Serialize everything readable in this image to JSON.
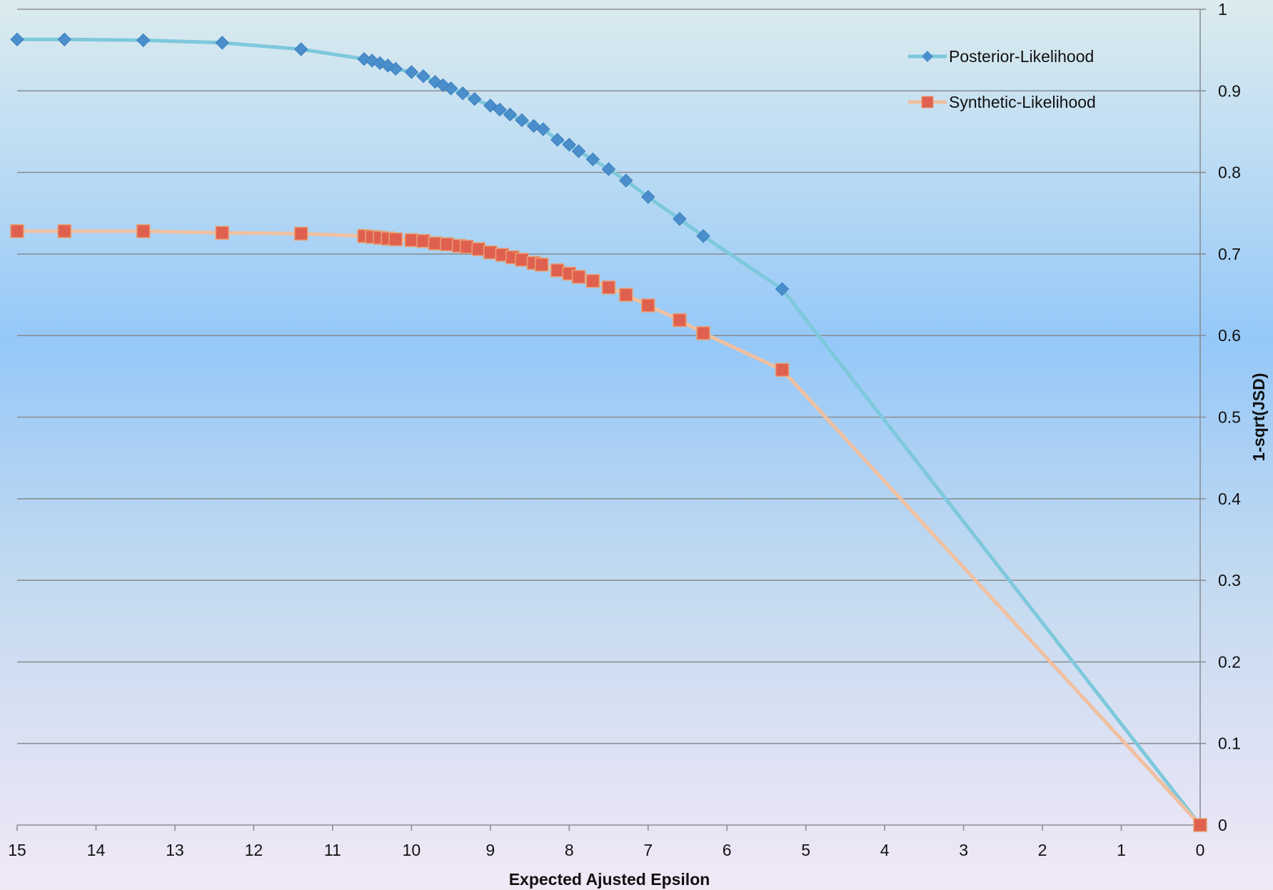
{
  "chart_data": {
    "type": "line",
    "xlabel": "Expected Ajusted Epsilon",
    "ylabel": "1-sqrt(JSD)",
    "xlim": [
      15,
      0
    ],
    "ylim": [
      0,
      1
    ],
    "x_axis_direction": "reversed",
    "y_axis_side": "right",
    "x_ticks": [
      15,
      14,
      13,
      12,
      11,
      10,
      9,
      8,
      7,
      6,
      5,
      4,
      3,
      2,
      1,
      0
    ],
    "y_ticks": [
      0,
      0.1,
      0.2,
      0.3,
      0.4,
      0.5,
      0.6,
      0.7,
      0.8,
      0.9,
      1
    ],
    "grid": "horizontal",
    "legend_position": "top-right",
    "series": [
      {
        "name": "Posterior-Likelihood",
        "color": "#7ec8dc",
        "marker_color": "#4a8fcc",
        "marker": "diamond",
        "points": [
          [
            15.0,
            0.963
          ],
          [
            14.4,
            0.963
          ],
          [
            13.4,
            0.962
          ],
          [
            12.4,
            0.959
          ],
          [
            11.4,
            0.951
          ],
          [
            10.6,
            0.939
          ],
          [
            10.5,
            0.937
          ],
          [
            10.4,
            0.934
          ],
          [
            10.3,
            0.931
          ],
          [
            10.2,
            0.927
          ],
          [
            10.0,
            0.923
          ],
          [
            9.85,
            0.918
          ],
          [
            9.7,
            0.911
          ],
          [
            9.6,
            0.907
          ],
          [
            9.5,
            0.903
          ],
          [
            9.35,
            0.897
          ],
          [
            9.2,
            0.89
          ],
          [
            9.0,
            0.882
          ],
          [
            8.88,
            0.877
          ],
          [
            8.75,
            0.871
          ],
          [
            8.6,
            0.864
          ],
          [
            8.45,
            0.857
          ],
          [
            8.33,
            0.853
          ],
          [
            8.15,
            0.84
          ],
          [
            8.0,
            0.834
          ],
          [
            7.88,
            0.826
          ],
          [
            7.7,
            0.816
          ],
          [
            7.5,
            0.804
          ],
          [
            7.28,
            0.79
          ],
          [
            7.0,
            0.77
          ],
          [
            6.6,
            0.743
          ],
          [
            6.3,
            0.722
          ],
          [
            5.3,
            0.657
          ],
          [
            0.0,
            0.0
          ]
        ]
      },
      {
        "name": "Synthetic-Likelihood",
        "color": "#f0c0a0",
        "marker_color": "#e06050",
        "marker": "square",
        "points": [
          [
            15.0,
            0.728
          ],
          [
            14.4,
            0.728
          ],
          [
            13.4,
            0.728
          ],
          [
            12.4,
            0.726
          ],
          [
            11.4,
            0.725
          ],
          [
            10.6,
            0.722
          ],
          [
            10.5,
            0.721
          ],
          [
            10.4,
            0.72
          ],
          [
            10.3,
            0.719
          ],
          [
            10.2,
            0.718
          ],
          [
            10.0,
            0.717
          ],
          [
            9.85,
            0.716
          ],
          [
            9.7,
            0.713
          ],
          [
            9.55,
            0.712
          ],
          [
            9.4,
            0.71
          ],
          [
            9.3,
            0.709
          ],
          [
            9.15,
            0.706
          ],
          [
            9.0,
            0.702
          ],
          [
            8.85,
            0.699
          ],
          [
            8.72,
            0.696
          ],
          [
            8.6,
            0.693
          ],
          [
            8.45,
            0.689
          ],
          [
            8.35,
            0.687
          ],
          [
            8.15,
            0.68
          ],
          [
            8.0,
            0.676
          ],
          [
            7.88,
            0.672
          ],
          [
            7.7,
            0.667
          ],
          [
            7.5,
            0.659
          ],
          [
            7.28,
            0.65
          ],
          [
            7.0,
            0.637
          ],
          [
            6.6,
            0.619
          ],
          [
            6.3,
            0.603
          ],
          [
            5.3,
            0.558
          ],
          [
            0.0,
            0.0
          ]
        ]
      }
    ]
  }
}
